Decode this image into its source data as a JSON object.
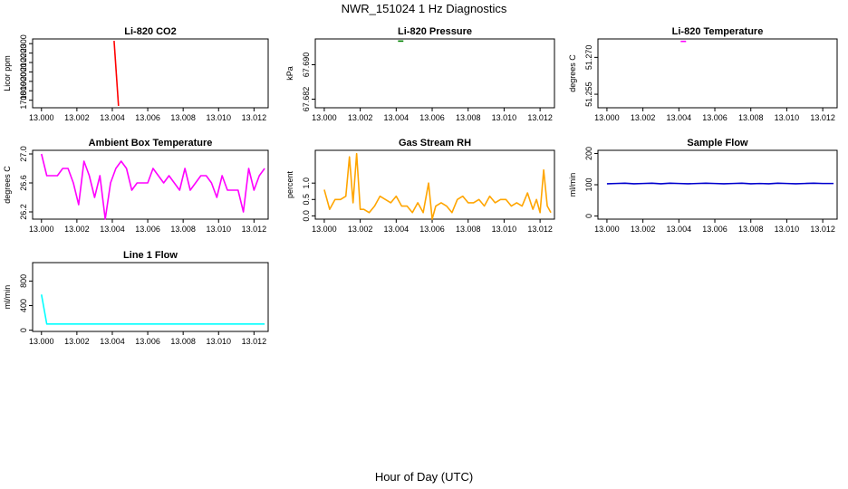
{
  "figure": {
    "title": "NWR_151024  1 Hz Diagnostics",
    "x_axis_title": "Hour of Day (UTC)"
  },
  "chart_data": [
    {
      "type": "line",
      "title": "Li-820 CO2",
      "ylabel": "Licor ppm",
      "color": "#ff0000",
      "xlim": [
        12.9995,
        13.0128
      ],
      "ylim": [
        1620,
        2350
      ],
      "x_ticks": [
        "13.000",
        "13.002",
        "13.004",
        "13.006",
        "13.008",
        "13.010",
        "13.012"
      ],
      "y_ticks": [
        "1700",
        "1800",
        "1900",
        "2000",
        "2100",
        "2200",
        "2300"
      ],
      "series": [
        {
          "x": [
            13.0041,
            13.00435
          ],
          "y": [
            2330,
            1640
          ]
        }
      ]
    },
    {
      "type": "line",
      "title": "Li-820 Pressure",
      "ylabel": "kPa",
      "color": "#008000",
      "xlim": [
        12.9995,
        13.0128
      ],
      "ylim": [
        67.68,
        67.696
      ],
      "x_ticks": [
        "13.000",
        "13.002",
        "13.004",
        "13.006",
        "13.008",
        "13.010",
        "13.012"
      ],
      "y_ticks": [
        "67.682",
        "67.690"
      ],
      "series": [
        {
          "x": [
            13.0041,
            13.0044
          ],
          "y": [
            67.6955,
            67.6955
          ]
        }
      ]
    },
    {
      "type": "line",
      "title": "Li-820 Temperature",
      "ylabel": "degrees C",
      "color": "#ff00ff",
      "xlim": [
        12.9995,
        13.0128
      ],
      "ylim": [
        51.2495,
        51.2775
      ],
      "x_ticks": [
        "13.000",
        "13.002",
        "13.004",
        "13.006",
        "13.008",
        "13.010",
        "13.012"
      ],
      "y_ticks": [
        "51.255",
        "51.270"
      ],
      "series": [
        {
          "x": [
            13.0041,
            13.0044
          ],
          "y": [
            51.2765,
            51.2765
          ]
        }
      ]
    },
    {
      "type": "line",
      "title": "Ambient Box Temperature",
      "ylabel": "degrees C",
      "color": "#ff00ff",
      "xlim": [
        12.9995,
        13.0128
      ],
      "ylim": [
        26.1,
        27.05
      ],
      "x_ticks": [
        "13.000",
        "13.002",
        "13.004",
        "13.006",
        "13.008",
        "13.010",
        "13.012"
      ],
      "y_ticks": [
        "26.2",
        "26.6",
        "27.0"
      ],
      "series": [
        {
          "x": [
            13.0,
            13.0003,
            13.0006,
            13.0009,
            13.0012,
            13.0015,
            13.0018,
            13.0021,
            13.0024,
            13.0027,
            13.003,
            13.0033,
            13.0036,
            13.0039,
            13.0042,
            13.0045,
            13.0048,
            13.0051,
            13.0054,
            13.0057,
            13.006,
            13.0063,
            13.0066,
            13.0069,
            13.0072,
            13.0075,
            13.0078,
            13.0081,
            13.0084,
            13.0087,
            13.009,
            13.0093,
            13.0096,
            13.0099,
            13.0102,
            13.0105,
            13.0108,
            13.0111,
            13.0114,
            13.0117,
            13.012,
            13.0123,
            13.0126
          ],
          "y": [
            27.0,
            26.7,
            26.7,
            26.7,
            26.8,
            26.8,
            26.6,
            26.3,
            26.9,
            26.7,
            26.4,
            26.7,
            26.1,
            26.6,
            26.8,
            26.9,
            26.8,
            26.5,
            26.6,
            26.6,
            26.6,
            26.8,
            26.7,
            26.6,
            26.7,
            26.6,
            26.5,
            26.8,
            26.5,
            26.6,
            26.7,
            26.7,
            26.6,
            26.4,
            26.7,
            26.5,
            26.5,
            26.5,
            26.2,
            26.8,
            26.5,
            26.7,
            26.8
          ]
        }
      ]
    },
    {
      "type": "line",
      "title": "Gas Stream RH",
      "ylabel": "percent",
      "color": "#ffa500",
      "xlim": [
        12.9995,
        13.0128
      ],
      "ylim": [
        -0.1,
        2.0
      ],
      "x_ticks": [
        "13.000",
        "13.002",
        "13.004",
        "13.006",
        "13.008",
        "13.010",
        "13.012"
      ],
      "y_ticks": [
        "0.0",
        "0.5",
        "1.0"
      ],
      "series": [
        {
          "x": [
            13.0,
            13.0003,
            13.0006,
            13.0009,
            13.0012,
            13.0014,
            13.0016,
            13.0018,
            13.002,
            13.0022,
            13.0025,
            13.0028,
            13.0031,
            13.0034,
            13.0037,
            13.004,
            13.0043,
            13.0046,
            13.0049,
            13.0052,
            13.0055,
            13.0058,
            13.006,
            13.0062,
            13.0065,
            13.0068,
            13.0071,
            13.0074,
            13.0077,
            13.008,
            13.0083,
            13.0086,
            13.0089,
            13.0092,
            13.0095,
            13.0098,
            13.0101,
            13.0104,
            13.0107,
            13.011,
            13.0113,
            13.0116,
            13.0118,
            13.012,
            13.0122,
            13.0124,
            13.0126
          ],
          "y": [
            0.8,
            0.2,
            0.5,
            0.5,
            0.6,
            1.8,
            0.4,
            1.9,
            0.2,
            0.2,
            0.1,
            0.3,
            0.6,
            0.5,
            0.4,
            0.6,
            0.3,
            0.3,
            0.1,
            0.4,
            0.1,
            1.0,
            -0.1,
            0.3,
            0.4,
            0.3,
            0.1,
            0.5,
            0.6,
            0.4,
            0.4,
            0.5,
            0.3,
            0.6,
            0.4,
            0.5,
            0.5,
            0.3,
            0.4,
            0.3,
            0.7,
            0.2,
            0.5,
            0.1,
            1.4,
            0.3,
            0.1
          ]
        }
      ]
    },
    {
      "type": "line",
      "title": "Sample Flow",
      "ylabel": "ml/min",
      "color": "#0000cd",
      "xlim": [
        12.9995,
        13.0128
      ],
      "ylim": [
        -10,
        210
      ],
      "x_ticks": [
        "13.000",
        "13.002",
        "13.004",
        "13.006",
        "13.008",
        "13.010",
        "13.012"
      ],
      "y_ticks": [
        "0",
        "100",
        "200"
      ],
      "series": [
        {
          "x": [
            13.0,
            13.0005,
            13.001,
            13.0015,
            13.002,
            13.0025,
            13.003,
            13.0035,
            13.004,
            13.0045,
            13.005,
            13.0055,
            13.006,
            13.0065,
            13.007,
            13.0075,
            13.008,
            13.0085,
            13.009,
            13.0095,
            13.01,
            13.0105,
            13.011,
            13.0115,
            13.012,
            13.0126
          ],
          "y": [
            103,
            104,
            105,
            103,
            104,
            105,
            103,
            105,
            104,
            103,
            104,
            105,
            104,
            103,
            104,
            105,
            103,
            104,
            103,
            105,
            104,
            103,
            104,
            105,
            104,
            104
          ]
        }
      ]
    },
    {
      "type": "line",
      "title": "Line 1 Flow",
      "ylabel": "ml/min",
      "color": "#00ffff",
      "xlim": [
        12.9995,
        13.0128
      ],
      "ylim": [
        -20,
        1100
      ],
      "x_ticks": [
        "13.000",
        "13.002",
        "13.004",
        "13.006",
        "13.008",
        "13.010",
        "13.012"
      ],
      "y_ticks": [
        "0",
        "400",
        "800"
      ],
      "series": [
        {
          "x": [
            13.0,
            13.0003,
            13.0126
          ],
          "y": [
            580,
            100,
            100
          ]
        }
      ]
    }
  ]
}
